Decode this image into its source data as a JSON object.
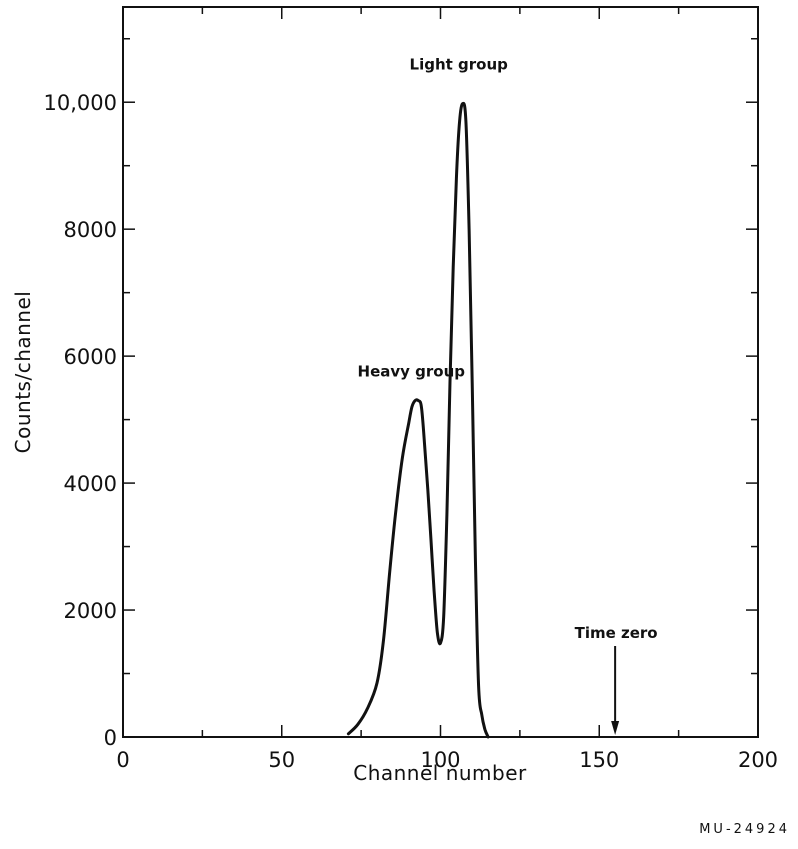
{
  "chart_data": {
    "type": "line",
    "xlabel": "Channel number",
    "ylabel": "Counts/channel",
    "xlim": [
      0,
      200
    ],
    "ylim": [
      0,
      11500
    ],
    "x_ticks": [
      0,
      50,
      100,
      150,
      200
    ],
    "x_tick_labels": [
      "0",
      "50",
      "100",
      "150",
      "200"
    ],
    "y_ticks": [
      0,
      2000,
      4000,
      6000,
      8000,
      10000
    ],
    "y_tick_labels": [
      "0",
      "2000",
      "4000",
      "6000",
      "8000",
      "10,000"
    ],
    "grid": false,
    "series": [
      {
        "x": [
          71,
          74,
          77,
          80,
          82,
          84,
          86,
          88,
          90,
          91,
          92,
          93,
          94,
          95,
          96,
          97,
          98,
          99,
          100,
          101,
          102,
          103,
          104,
          105,
          106,
          107,
          108,
          109,
          110,
          111,
          112,
          113,
          114,
          115
        ],
        "y": [
          50,
          200,
          450,
          850,
          1500,
          2600,
          3600,
          4400,
          4950,
          5200,
          5300,
          5300,
          5200,
          4600,
          3900,
          3100,
          2300,
          1650,
          1480,
          1900,
          3500,
          5600,
          7400,
          8800,
          9700,
          9980,
          9700,
          8000,
          5500,
          2800,
          800,
          350,
          120,
          0
        ]
      }
    ],
    "annotations": [
      {
        "text": "Light group",
        "x": 107,
        "y": 9980
      },
      {
        "text": "Heavy group",
        "x": 93,
        "y": 5300
      },
      {
        "text": "Time zero",
        "x": 155,
        "y": 0
      }
    ]
  },
  "figure_id": "MU-24924"
}
